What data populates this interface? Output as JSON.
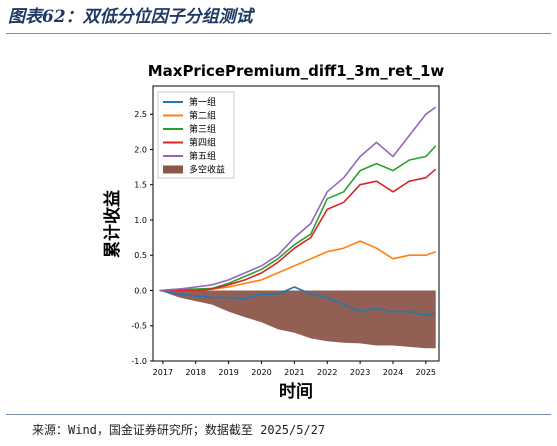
{
  "figure": {
    "title": "图表62：双低分位因子分组测试",
    "source": "来源：Wind，国金证券研究所；数据截至 2025/5/27"
  },
  "chart_data": {
    "type": "line",
    "title": "MaxPricePremium_diff1_3m_ret_1w",
    "xlabel": "时间",
    "ylabel": "累计收益",
    "xlim": [
      2016.7,
      2025.4
    ],
    "ylim": [
      -1.0,
      2.9
    ],
    "x_ticks": [
      "2017",
      "2018",
      "2019",
      "2020",
      "2021",
      "2022",
      "2023",
      "2024",
      "2025"
    ],
    "y_ticks": [
      "-1.0",
      "-0.5",
      "0.0",
      "0.5",
      "1.0",
      "1.5",
      "2.0",
      "2.5"
    ],
    "legend_position": "top-left",
    "x": [
      2016.9,
      2017.5,
      2018.0,
      2018.5,
      2019.0,
      2019.5,
      2020.0,
      2020.5,
      2021.0,
      2021.5,
      2022.0,
      2022.5,
      2023.0,
      2023.5,
      2024.0,
      2024.5,
      2025.0,
      2025.3
    ],
    "series": [
      {
        "name": "第一组",
        "color": "#1f77b4",
        "values": [
          0.0,
          -0.05,
          -0.08,
          -0.1,
          -0.1,
          -0.12,
          -0.05,
          -0.05,
          0.05,
          -0.05,
          -0.1,
          -0.2,
          -0.3,
          -0.25,
          -0.3,
          -0.3,
          -0.35,
          -0.32
        ]
      },
      {
        "name": "第二组",
        "color": "#ff7f0e",
        "values": [
          0.0,
          0.0,
          0.0,
          0.02,
          0.05,
          0.1,
          0.15,
          0.25,
          0.35,
          0.45,
          0.55,
          0.6,
          0.7,
          0.6,
          0.45,
          0.5,
          0.5,
          0.55
        ]
      },
      {
        "name": "第三组",
        "color": "#2ca02c",
        "values": [
          0.0,
          0.02,
          0.02,
          0.03,
          0.1,
          0.2,
          0.3,
          0.45,
          0.65,
          0.8,
          1.3,
          1.4,
          1.7,
          1.8,
          1.7,
          1.85,
          1.9,
          2.05
        ]
      },
      {
        "name": "第四组",
        "color": "#d62728",
        "values": [
          0.0,
          0.0,
          0.0,
          0.02,
          0.08,
          0.15,
          0.25,
          0.4,
          0.6,
          0.75,
          1.15,
          1.25,
          1.5,
          1.55,
          1.4,
          1.55,
          1.6,
          1.72
        ]
      },
      {
        "name": "第五组",
        "color": "#9467bd",
        "values": [
          0.0,
          0.02,
          0.05,
          0.08,
          0.15,
          0.25,
          0.35,
          0.5,
          0.75,
          0.95,
          1.4,
          1.6,
          1.9,
          2.1,
          1.9,
          2.2,
          2.5,
          2.6
        ]
      }
    ],
    "area_series": {
      "name": "多空收益",
      "color": "#8c564b",
      "values": [
        0.0,
        -0.1,
        -0.15,
        -0.2,
        -0.3,
        -0.38,
        -0.45,
        -0.55,
        -0.6,
        -0.68,
        -0.72,
        -0.74,
        -0.75,
        -0.78,
        -0.78,
        -0.8,
        -0.82,
        -0.82
      ]
    }
  }
}
